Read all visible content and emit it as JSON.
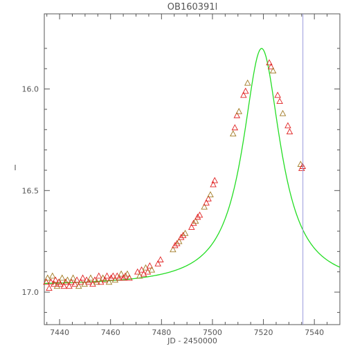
{
  "chart_data": {
    "type": "scatter",
    "title": "OB160391l",
    "xlabel": "JD - 2450000",
    "ylabel": "I",
    "xlim": [
      7434,
      7550
    ],
    "ylim": [
      17.16,
      15.63
    ],
    "y_inverted": true,
    "x_ticks": [
      7440,
      7460,
      7480,
      7500,
      7520,
      7540
    ],
    "x_tick_labels": [
      "7440",
      "7460",
      "7480",
      "7500",
      "7520",
      "7540"
    ],
    "y_ticks": [
      16.0,
      16.5,
      17.0
    ],
    "y_tick_labels": [
      "16.0",
      "16.5",
      "17.0"
    ],
    "marker": "triangle-open",
    "colors": {
      "data": "#e02020",
      "data_alt": "#a07820",
      "model": "#22dd22",
      "vertical_line": "#9999dd",
      "axes": "#555555"
    },
    "vertical_line_x": 7535.5,
    "model_params": {
      "t0": 7519.3,
      "peak": 15.8,
      "baseline": 16.97,
      "width": 9.0
    },
    "series": [
      {
        "points": [
          [
            7434.8,
            16.95
          ],
          [
            7435.3,
            16.93
          ],
          [
            7435.9,
            16.98
          ],
          [
            7436.6,
            16.95
          ],
          [
            7437.2,
            16.92
          ],
          [
            7437.8,
            16.96
          ],
          [
            7438.4,
            16.94
          ],
          [
            7439.0,
            16.97
          ],
          [
            7439.7,
            16.95
          ],
          [
            7440.3,
            16.96
          ],
          [
            7441.0,
            16.93
          ],
          [
            7441.7,
            16.97
          ],
          [
            7442.4,
            16.95
          ],
          [
            7443.1,
            16.94
          ],
          [
            7443.8,
            16.97
          ],
          [
            7444.6,
            16.95
          ],
          [
            7445.3,
            16.93
          ],
          [
            7446.0,
            16.96
          ],
          [
            7446.8,
            16.94
          ],
          [
            7447.5,
            16.97
          ],
          [
            7448.3,
            16.95
          ],
          [
            7449.1,
            16.93
          ],
          [
            7449.8,
            16.96
          ],
          [
            7450.6,
            16.94
          ],
          [
            7451.4,
            16.95
          ],
          [
            7452.2,
            16.93
          ],
          [
            7453.0,
            16.96
          ],
          [
            7453.8,
            16.94
          ],
          [
            7454.6,
            16.95
          ],
          [
            7455.4,
            16.92
          ],
          [
            7456.2,
            16.95
          ],
          [
            7457.0,
            16.93
          ],
          [
            7457.8,
            16.94
          ],
          [
            7458.6,
            16.92
          ],
          [
            7459.4,
            16.95
          ],
          [
            7460.2,
            16.93
          ],
          [
            7461.0,
            16.92
          ],
          [
            7461.8,
            16.94
          ],
          [
            7462.6,
            16.92
          ],
          [
            7463.4,
            16.93
          ],
          [
            7464.2,
            16.91
          ],
          [
            7465.0,
            16.93
          ],
          [
            7465.8,
            16.92
          ],
          [
            7466.6,
            16.91
          ],
          [
            7467.4,
            16.93
          ],
          [
            7470.6,
            16.9
          ],
          [
            7471.4,
            16.92
          ],
          [
            7472.2,
            16.89
          ],
          [
            7473.0,
            16.91
          ],
          [
            7473.8,
            16.88
          ],
          [
            7474.6,
            16.9
          ],
          [
            7475.4,
            16.87
          ],
          [
            7476.2,
            16.89
          ],
          [
            7478.6,
            16.86
          ],
          [
            7479.6,
            16.84
          ],
          [
            7484.5,
            16.79
          ],
          [
            7485.3,
            16.77
          ],
          [
            7486.1,
            16.76
          ],
          [
            7486.9,
            16.75
          ],
          [
            7487.7,
            16.73
          ],
          [
            7488.5,
            16.72
          ],
          [
            7489.3,
            16.71
          ],
          [
            7491.8,
            16.68
          ],
          [
            7492.6,
            16.66
          ],
          [
            7493.4,
            16.65
          ],
          [
            7494.2,
            16.63
          ],
          [
            7495.0,
            16.62
          ],
          [
            7496.8,
            16.58
          ],
          [
            7497.6,
            16.56
          ],
          [
            7498.4,
            16.54
          ],
          [
            7499.2,
            16.52
          ],
          [
            7500.3,
            16.47
          ],
          [
            7500.9,
            16.45
          ],
          [
            7508.1,
            16.22
          ],
          [
            7508.8,
            16.19
          ],
          [
            7509.6,
            16.13
          ],
          [
            7510.4,
            16.11
          ],
          [
            7512.2,
            16.03
          ],
          [
            7513.0,
            16.01
          ],
          [
            7513.8,
            15.97
          ],
          [
            7522.3,
            15.87
          ],
          [
            7523.0,
            15.89
          ],
          [
            7523.8,
            15.91
          ],
          [
            7525.6,
            16.03
          ],
          [
            7526.4,
            16.06
          ],
          [
            7527.6,
            16.12
          ],
          [
            7529.6,
            16.18
          ],
          [
            7530.3,
            16.21
          ],
          [
            7534.6,
            16.37
          ],
          [
            7535.0,
            16.39
          ],
          [
            7535.4,
            16.38
          ]
        ]
      }
    ]
  }
}
